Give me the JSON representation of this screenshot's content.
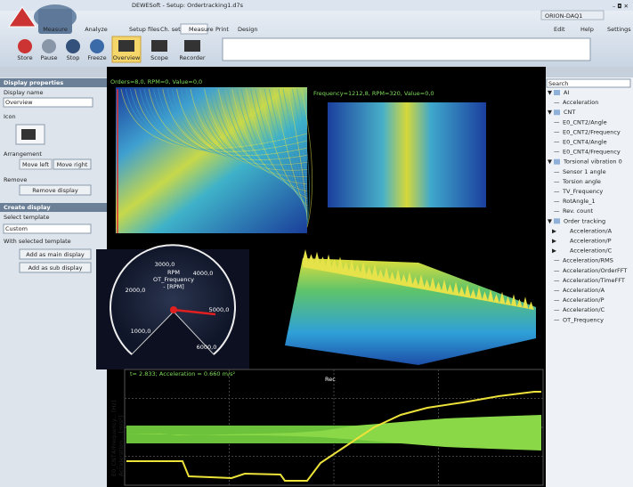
{
  "titlebar": {
    "title": "DEWESoft - Setup: Ordertracking1.d7s",
    "device": "ORION-DAQ1"
  },
  "app_buttons": [
    "Measure",
    "Analyze"
  ],
  "tabs": [
    "Setup files",
    "Ch. setup",
    "Measure",
    "Print",
    "Design"
  ],
  "menu_right": [
    "Edit",
    "Help",
    "Settings"
  ],
  "toolbar": [
    "Store",
    "Pause",
    "Stop",
    "Freeze",
    "Overview",
    "Scope",
    "Recorder"
  ],
  "left_panel": {
    "display_properties": {
      "header": "Display properties",
      "display_name_label": "Display name",
      "display_name": "Overview",
      "icon_label": "Icon",
      "arrangement_label": "Arrangement",
      "move_left": "Move left",
      "move_right": "Move right",
      "remove_label": "Remove",
      "remove_button": "Remove display"
    },
    "create_display": {
      "header": "Create display",
      "select_template_label": "Select template",
      "template": "Custom",
      "with_selected_label": "With selected template",
      "add_main": "Add as main display",
      "add_sub": "Add as sub display"
    }
  },
  "channel_tree": {
    "search_placeholder": "Search",
    "groups": [
      {
        "label": "AI",
        "children": [
          "Acceleration"
        ]
      },
      {
        "label": "CNT",
        "children": [
          "E0_CNT2/Angle",
          "E0_CNT2/Frequency",
          "E0_CNT4/Angle",
          "E0_CNT4/Frequency"
        ]
      },
      {
        "label": "Torsional vibration 0",
        "children": [
          "Sensor 1 angle",
          "Torsion angle",
          "TV_Frequency",
          "RotAngle_1",
          "Rev. count"
        ]
      },
      {
        "label": "Order tracking",
        "children": [
          "Acceleration/A",
          "Acceleration/P",
          "Acceleration/C",
          "Acceleration/RMS",
          "Acceleration/OrderFFT",
          "Acceleration/TimeFFT",
          "Acceleration/A",
          "Acceleration/P",
          "Acceleration/C",
          "OT_Frequency"
        ]
      }
    ]
  },
  "displays": {
    "order_map_readout": "Orders=8,0, RPM=0, Value=0,0",
    "fft_map_readout": "Frequency=1212,8, RPM=320, Value=0,0",
    "gauge": {
      "ticks": [
        "1000,0",
        "2000,0",
        "3000,0",
        "4000,0",
        "5000,0",
        "6000,0"
      ],
      "unit": "RPM",
      "channel": "OT_Frequency",
      "unit_label": "- [RPM]"
    },
    "recorder": {
      "readout": "t= 2.833; Acceleration = 0.660 m/s²",
      "marker": "Rec",
      "axis_labels": [
        "E0_CNT4/Frequency... [Hz]",
        "Acceleration... [m/s²]"
      ]
    }
  }
}
